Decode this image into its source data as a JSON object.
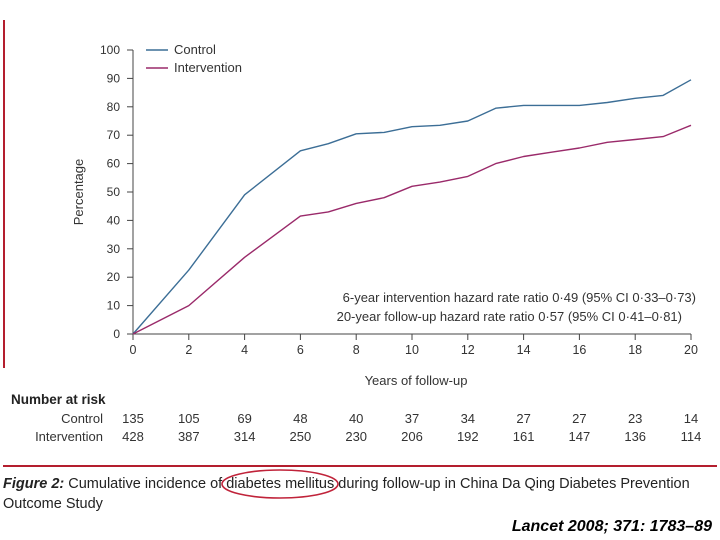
{
  "chart_data": {
    "type": "line",
    "xlabel": "Years of follow-up",
    "ylabel": "Percentage",
    "xlim": [
      0,
      20
    ],
    "ylim": [
      0,
      100
    ],
    "x_ticks": [
      "0",
      "2",
      "4",
      "6",
      "8",
      "10",
      "12",
      "14",
      "16",
      "18",
      "20"
    ],
    "y_ticks": [
      "0",
      "10",
      "20",
      "30",
      "40",
      "50",
      "60",
      "70",
      "80",
      "90",
      "100"
    ],
    "series": [
      {
        "name": "Control",
        "color": "#3c6e96",
        "points": [
          [
            0,
            0
          ],
          [
            2,
            22.5
          ],
          [
            4,
            49
          ],
          [
            6,
            64.5
          ],
          [
            7,
            67
          ],
          [
            8,
            70.5
          ],
          [
            9,
            71
          ],
          [
            10,
            73
          ],
          [
            11,
            73.5
          ],
          [
            12,
            75
          ],
          [
            13,
            79.5
          ],
          [
            14,
            80.5
          ],
          [
            15,
            80.5
          ],
          [
            16,
            80.5
          ],
          [
            17,
            81.5
          ],
          [
            18,
            83
          ],
          [
            19,
            84
          ],
          [
            20,
            89.5
          ]
        ]
      },
      {
        "name": "Intervention",
        "color": "#9a2a6a",
        "points": [
          [
            0,
            0
          ],
          [
            2,
            10
          ],
          [
            4,
            27
          ],
          [
            6,
            41.5
          ],
          [
            7,
            43
          ],
          [
            8,
            46
          ],
          [
            9,
            48
          ],
          [
            10,
            52
          ],
          [
            11,
            53.5
          ],
          [
            12,
            55.5
          ],
          [
            13,
            60
          ],
          [
            14,
            62.5
          ],
          [
            15,
            64
          ],
          [
            16,
            65.5
          ],
          [
            17,
            67.5
          ],
          [
            18,
            68.5
          ],
          [
            19,
            69.5
          ],
          [
            20,
            73.5
          ]
        ]
      }
    ],
    "annotations": [
      "6-year intervention hazard rate ratio 0·49 (95% CI 0·33–0·73)",
      "20-year follow-up hazard rate ratio 0·57 (95% CI 0·41–0·81)"
    ],
    "number_at_risk": {
      "title": "Number at risk",
      "rows": [
        {
          "label": "Control",
          "values": [
            "135",
            "105",
            "69",
            "48",
            "40",
            "37",
            "34",
            "27",
            "27",
            "23",
            "14"
          ]
        },
        {
          "label": "Intervention",
          "values": [
            "428",
            "387",
            "314",
            "250",
            "230",
            "206",
            "192",
            "161",
            "147",
            "136",
            "114"
          ]
        }
      ]
    }
  },
  "caption": {
    "figure_label": "Figure 2:",
    "text": " Cumulative incidence of diabetes mellitus during follow-up in China Da Qing Diabetes Prevention Outcome Study"
  },
  "citation": "Lancet 2008; 371: 1783–89",
  "colors": {
    "highlight": "#c0233a",
    "frame": "#b41e2e"
  }
}
